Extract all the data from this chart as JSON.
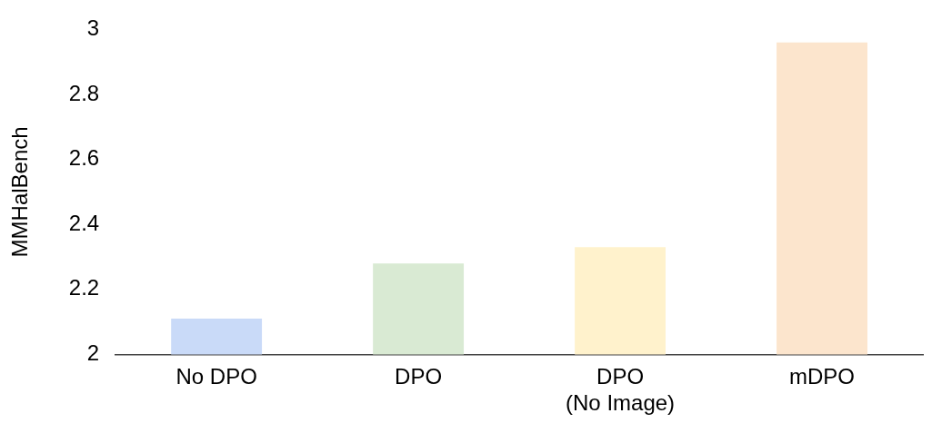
{
  "chart_data": {
    "type": "bar",
    "ylabel": "MMHalBench",
    "categories": [
      "No DPO",
      "DPO",
      "DPO\n(No Image)",
      "mDPO"
    ],
    "values": [
      2.11,
      2.28,
      2.33,
      2.96
    ],
    "colors": [
      "#c9daf8",
      "#d9ead3",
      "#fff2cc",
      "#fce5cd"
    ],
    "ylim": [
      2,
      3
    ],
    "yticks": [
      2,
      2.2,
      2.4,
      2.6,
      2.8,
      3
    ],
    "grid": false,
    "legend": false
  }
}
